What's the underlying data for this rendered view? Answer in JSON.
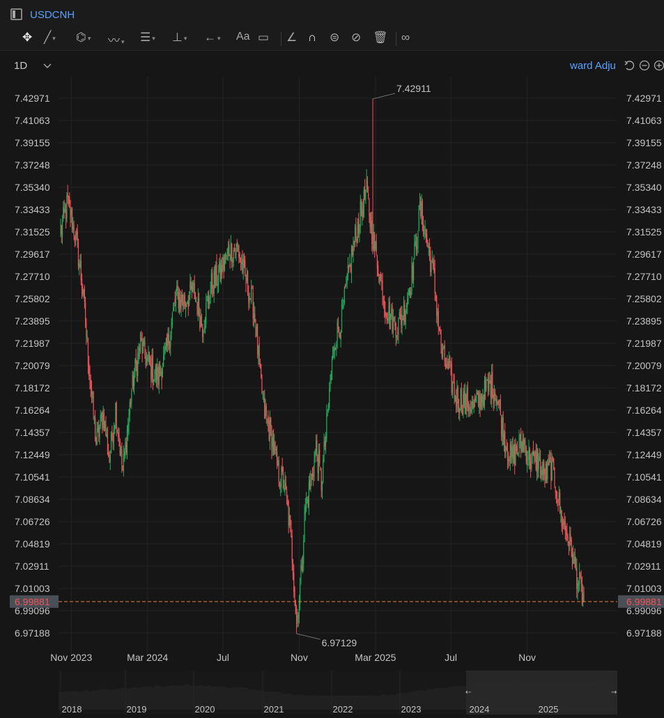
{
  "window": {
    "title": "USDCNH"
  },
  "toolbar": {
    "tools": [
      {
        "name": "move-tool",
        "icon": "move-icon",
        "glyph": "✥",
        "dropdown": false
      },
      {
        "name": "line-tool",
        "icon": "line-icon",
        "glyph": "╱",
        "dropdown": true
      },
      {
        "name": "shape-tool",
        "icon": "polygon-icon",
        "glyph": "⌬",
        "dropdown": true
      },
      {
        "name": "wave-tool",
        "icon": "wave-icon",
        "glyph": "〰",
        "dropdown": true
      },
      {
        "name": "fib-tool",
        "icon": "fib-icon",
        "glyph": "☰",
        "dropdown": true
      },
      {
        "name": "measure-tool",
        "icon": "measure-icon",
        "glyph": "⊥",
        "dropdown": true
      },
      {
        "name": "arrow-tool",
        "icon": "arrow-icon",
        "glyph": "←",
        "dropdown": true
      },
      {
        "name": "text-tool",
        "icon": "text-icon",
        "glyph": "Aa",
        "dropdown": false
      },
      {
        "name": "note-tool",
        "icon": "comment-icon",
        "glyph": "▭",
        "dropdown": false
      },
      {
        "name": "angle-tool",
        "icon": "angle-icon",
        "glyph": "∠",
        "dropdown": false
      },
      {
        "name": "magnet-tool",
        "icon": "magnet-icon",
        "glyph": "∩",
        "dropdown": false
      },
      {
        "name": "lock-tool",
        "icon": "lock-icon",
        "glyph": "⊜",
        "dropdown": false
      },
      {
        "name": "hide-tool",
        "icon": "eye-off-icon",
        "glyph": "⊘",
        "dropdown": false
      },
      {
        "name": "delete-tool",
        "icon": "trash-icon",
        "glyph": "🗑",
        "dropdown": false
      },
      {
        "name": "compare-tool",
        "icon": "compare-icon",
        "glyph": "∞",
        "dropdown": false
      }
    ]
  },
  "subbar": {
    "interval": "1D",
    "adjust_label": "ward Adju"
  },
  "colors": {
    "up": "#22ab5c",
    "down": "#f0545a",
    "price_line": "#e8793a",
    "price_badge": "#4a4f55",
    "grid": "#232323"
  },
  "chart_data": {
    "type": "candlestick",
    "symbol": "USDCNH",
    "ylim": [
      6.9624,
      7.4393
    ],
    "y_ticks": [
      "7.42971",
      "7.41063",
      "7.39155",
      "7.37248",
      "7.35340",
      "7.33433",
      "7.31525",
      "7.29617",
      "7.27710",
      "7.25802",
      "7.23895",
      "7.21987",
      "7.20079",
      "7.18172",
      "7.16264",
      "7.14357",
      "7.12449",
      "7.10541",
      "7.08634",
      "7.06726",
      "7.04819",
      "7.02911",
      "7.01003",
      "6.99096",
      "6.97188"
    ],
    "x_ticks": [
      {
        "label": "Nov 2023",
        "index": 12
      },
      {
        "label": "Mar 2024",
        "index": 98
      },
      {
        "label": "Jul",
        "index": 183
      },
      {
        "label": "Nov",
        "index": 269
      },
      {
        "label": "Mar 2025",
        "index": 355
      },
      {
        "label": "Jul",
        "index": 440
      },
      {
        "label": "Nov",
        "index": 526
      }
    ],
    "keypoints": [
      {
        "i": 0,
        "v": 7.315
      },
      {
        "i": 8,
        "v": 7.34
      },
      {
        "i": 15,
        "v": 7.318
      },
      {
        "i": 20,
        "v": 7.295
      },
      {
        "i": 25,
        "v": 7.265
      },
      {
        "i": 32,
        "v": 7.2
      },
      {
        "i": 40,
        "v": 7.135
      },
      {
        "i": 48,
        "v": 7.16
      },
      {
        "i": 55,
        "v": 7.12
      },
      {
        "i": 62,
        "v": 7.165
      },
      {
        "i": 70,
        "v": 7.11
      },
      {
        "i": 80,
        "v": 7.18
      },
      {
        "i": 90,
        "v": 7.22
      },
      {
        "i": 100,
        "v": 7.2
      },
      {
        "i": 110,
        "v": 7.19
      },
      {
        "i": 120,
        "v": 7.215
      },
      {
        "i": 130,
        "v": 7.26
      },
      {
        "i": 140,
        "v": 7.255
      },
      {
        "i": 150,
        "v": 7.265
      },
      {
        "i": 160,
        "v": 7.235
      },
      {
        "i": 170,
        "v": 7.27
      },
      {
        "i": 180,
        "v": 7.28
      },
      {
        "i": 190,
        "v": 7.3
      },
      {
        "i": 200,
        "v": 7.3
      },
      {
        "i": 210,
        "v": 7.27
      },
      {
        "i": 218,
        "v": 7.25
      },
      {
        "i": 225,
        "v": 7.19
      },
      {
        "i": 230,
        "v": 7.16
      },
      {
        "i": 238,
        "v": 7.14
      },
      {
        "i": 245,
        "v": 7.11
      },
      {
        "i": 252,
        "v": 7.1
      },
      {
        "i": 258,
        "v": 7.065
      },
      {
        "i": 262,
        "v": 7.03
      },
      {
        "i": 266,
        "v": 6.98
      },
      {
        "i": 270,
        "v": 7.01
      },
      {
        "i": 276,
        "v": 7.08
      },
      {
        "i": 282,
        "v": 7.1
      },
      {
        "i": 288,
        "v": 7.13
      },
      {
        "i": 294,
        "v": 7.1
      },
      {
        "i": 300,
        "v": 7.15
      },
      {
        "i": 308,
        "v": 7.22
      },
      {
        "i": 318,
        "v": 7.245
      },
      {
        "i": 328,
        "v": 7.295
      },
      {
        "i": 338,
        "v": 7.33
      },
      {
        "i": 345,
        "v": 7.35
      },
      {
        "i": 350,
        "v": 7.32
      },
      {
        "i": 357,
        "v": 7.29
      },
      {
        "i": 365,
        "v": 7.255
      },
      {
        "i": 372,
        "v": 7.24
      },
      {
        "i": 380,
        "v": 7.235
      },
      {
        "i": 388,
        "v": 7.25
      },
      {
        "i": 395,
        "v": 7.275
      },
      {
        "i": 400,
        "v": 7.3
      },
      {
        "i": 405,
        "v": 7.335
      },
      {
        "i": 410,
        "v": 7.32
      },
      {
        "i": 415,
        "v": 7.3
      },
      {
        "i": 420,
        "v": 7.28
      },
      {
        "i": 425,
        "v": 7.245
      },
      {
        "i": 430,
        "v": 7.21
      },
      {
        "i": 438,
        "v": 7.195
      },
      {
        "i": 445,
        "v": 7.175
      },
      {
        "i": 455,
        "v": 7.17
      },
      {
        "i": 465,
        "v": 7.165
      },
      {
        "i": 475,
        "v": 7.175
      },
      {
        "i": 485,
        "v": 7.185
      },
      {
        "i": 492,
        "v": 7.175
      },
      {
        "i": 500,
        "v": 7.14
      },
      {
        "i": 508,
        "v": 7.12
      },
      {
        "i": 515,
        "v": 7.13
      },
      {
        "i": 522,
        "v": 7.135
      },
      {
        "i": 530,
        "v": 7.12
      },
      {
        "i": 538,
        "v": 7.12
      },
      {
        "i": 545,
        "v": 7.105
      },
      {
        "i": 552,
        "v": 7.115
      },
      {
        "i": 558,
        "v": 7.1
      },
      {
        "i": 565,
        "v": 7.07
      },
      {
        "i": 572,
        "v": 7.055
      },
      {
        "i": 578,
        "v": 7.035
      },
      {
        "i": 584,
        "v": 7.015
      },
      {
        "i": 590,
        "v": 6.99881
      }
    ],
    "spikes": [
      {
        "i": 352,
        "high": 7.42911
      },
      {
        "i": 266,
        "low": 6.97129
      }
    ],
    "annotations": [
      {
        "label": "7.42911",
        "type": "high",
        "i": 352,
        "value": 7.42911
      },
      {
        "label": "6.97129",
        "type": "low",
        "i": 266,
        "value": 6.97129
      }
    ],
    "last_price": "6.99881",
    "last_price_value": 6.99881,
    "candle_count": 591,
    "grid": true
  },
  "navigator": {
    "years": [
      "2018",
      "2019",
      "2020",
      "2021",
      "2022",
      "2023",
      "2024",
      "2025"
    ],
    "left_handle": "←",
    "right_handle": "→"
  }
}
